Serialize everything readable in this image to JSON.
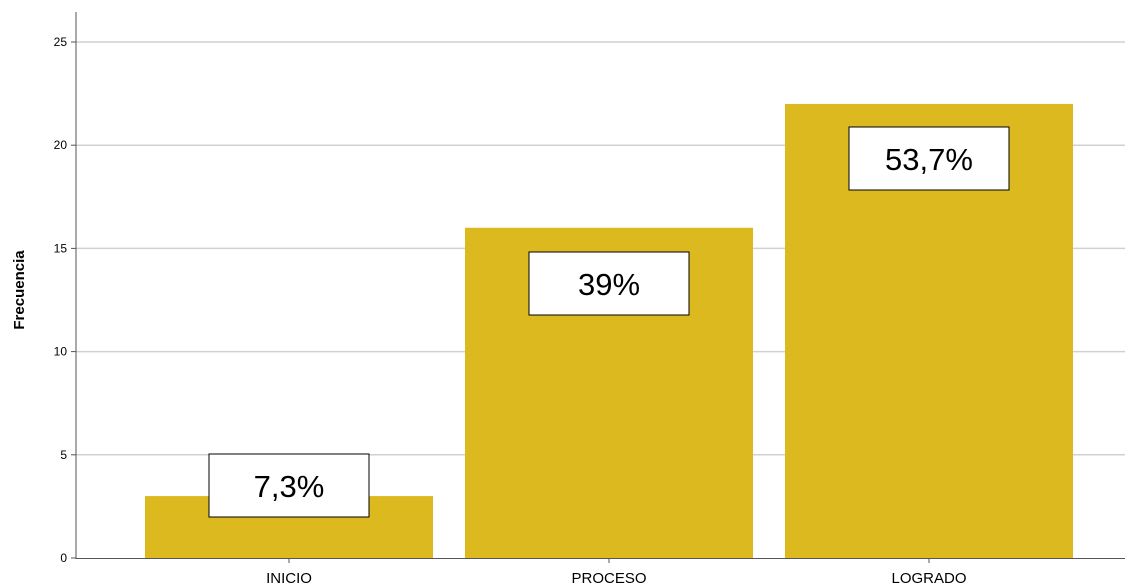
{
  "chart_data": {
    "type": "bar",
    "categories": [
      "INICIO",
      "PROCESO",
      "LOGRADO"
    ],
    "values": [
      3,
      16,
      22
    ],
    "data_labels": [
      "7,3%",
      "39%",
      "53,7%"
    ],
    "ylabel": "Frecuencia",
    "xlabel": "",
    "ylim": [
      0,
      26
    ],
    "yticks": [
      0,
      5,
      10,
      15,
      20,
      25
    ],
    "grid": true,
    "bar_color": "#DDB920",
    "grid_color": "#D0D0D0",
    "legend": "none"
  }
}
